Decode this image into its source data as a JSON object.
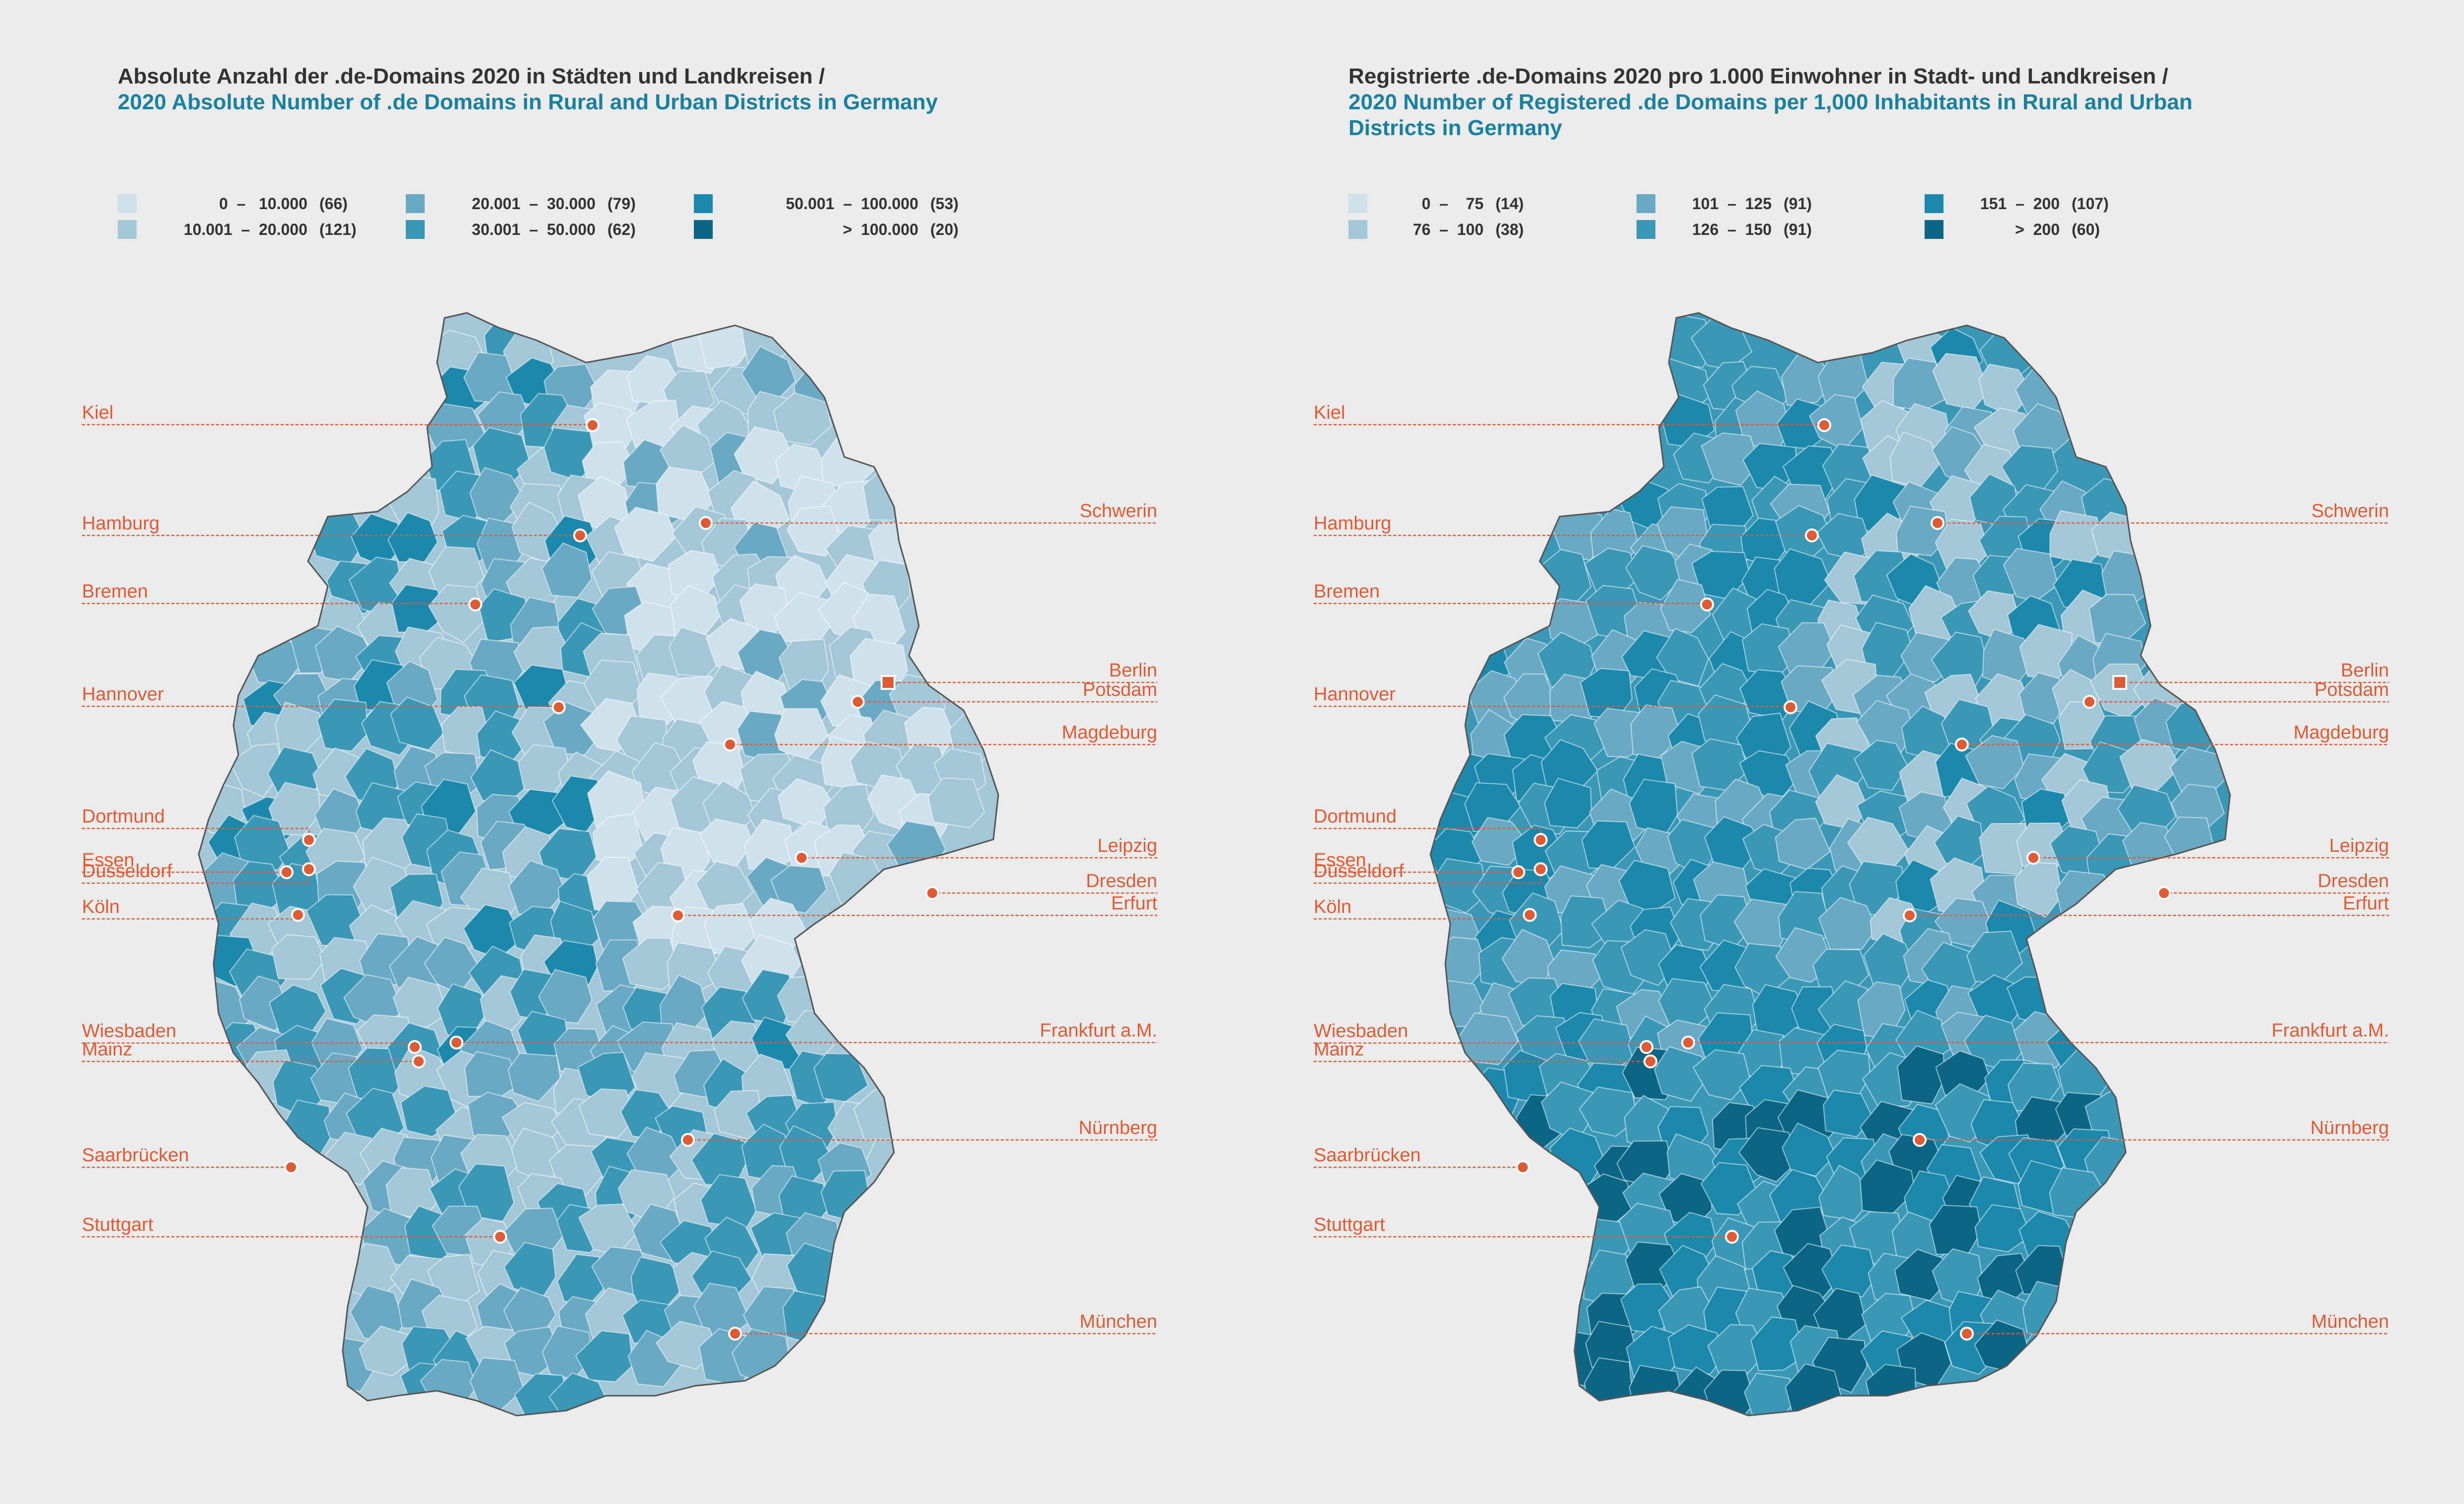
{
  "palette": {
    "c1": "#cfe1ea",
    "c2": "#a4c7d7",
    "c3": "#6aa9c3",
    "c4": "#3a97b6",
    "c5": "#1c88ab",
    "c6": "#0b6585",
    "accent": "#e05a33",
    "background": "#ecebeb"
  },
  "left": {
    "title_de": "Absolute Anzahl der .de-Domains 2020 in Städten und Landkreisen /",
    "title_en": "2020 Absolute Number of .de Domains in Rural and Urban Districts in Germany",
    "legend": [
      {
        "range": "0  –   10.000",
        "count": "(66)",
        "color": "#cfe1ea"
      },
      {
        "range": "10.001  –  20.000",
        "count": "(121)",
        "color": "#a4c7d7"
      },
      {
        "range": "20.001  –  30.000",
        "count": "(79)",
        "color": "#6aa9c3"
      },
      {
        "range": "30.001  –  50.000",
        "count": "(62)",
        "color": "#3a97b6"
      },
      {
        "range": "50.001  –  100.000",
        "count": "(53)",
        "color": "#1c88ab"
      },
      {
        "range": ">  100.000",
        "count": "(20)",
        "color": "#0b6585"
      }
    ]
  },
  "right": {
    "title_de": "Registrierte .de-Domains 2020 pro 1.000 Einwohner in Stadt- und Landkreisen /",
    "title_en": "2020 Number of Registered .de Domains per 1,000 Inhabitants in Rural and Urban Districts in Germany",
    "legend": [
      {
        "range": "0  –    75",
        "count": "(14)",
        "color": "#cfe1ea"
      },
      {
        "range": "76  –  100",
        "count": "(38)",
        "color": "#a4c7d7"
      },
      {
        "range": "101  –  125",
        "count": "(91)",
        "color": "#6aa9c3"
      },
      {
        "range": "126  –  150",
        "count": "(91)",
        "color": "#3a97b6"
      },
      {
        "range": "151  –  200",
        "count": "(107)",
        "color": "#1c88ab"
      },
      {
        "range": ">  200",
        "count": "(60)",
        "color": "#0b6585"
      }
    ]
  },
  "cities_left_side": [
    "Kiel",
    "Hamburg",
    "Bremen",
    "Hannover",
    "Dortmund",
    "Essen",
    "Düsseldorf",
    "Köln",
    "Wiesbaden",
    "Mainz",
    "Saarbrücken",
    "Stuttgart"
  ],
  "cities_right_side": [
    "Schwerin",
    "Berlin",
    "Potsdam",
    "Magdeburg",
    "Leipzig",
    "Dresden",
    "Erfurt",
    "Frankfurt a.M.",
    "Nürnberg",
    "München"
  ]
}
